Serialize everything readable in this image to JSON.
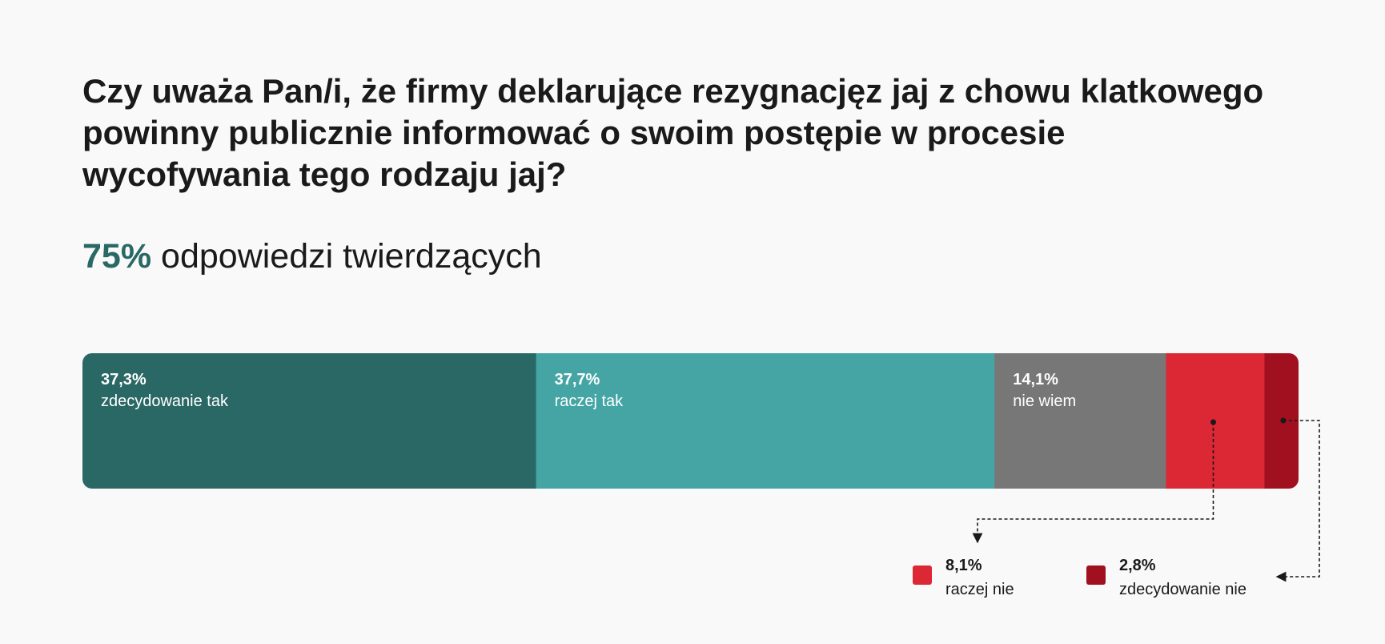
{
  "title_lines": [
    "Czy uważa Pan/i, że firmy deklarujące rezygnacjęz jaj z chowu klatkowego",
    "powinny publicznie informować o swoim postępie w procesie",
    "wycofywania tego rodzaju jaj?"
  ],
  "summary": {
    "percent": "75%",
    "text": "odpowiedzi twierdzących"
  },
  "colors": {
    "summary_accent": "#2a6866",
    "label_on_bar": "#ffffff",
    "legend_text": "#1a1a1a",
    "leader_line": "#1a1a1a"
  },
  "chart_data": {
    "type": "bar",
    "orientation": "horizontal-stacked-100",
    "unit": "%",
    "series": [
      {
        "name": "zdecydowanie tak",
        "value": 37.3,
        "label": "37,3%",
        "color": "#2a6866",
        "label_position": "inside"
      },
      {
        "name": "raczej tak",
        "value": 37.7,
        "label": "37,7%",
        "color": "#45a5a5",
        "label_position": "inside"
      },
      {
        "name": "nie wiem",
        "value": 14.1,
        "label": "14,1%",
        "color": "#777777",
        "label_position": "inside"
      },
      {
        "name": "raczej nie",
        "value": 8.1,
        "label": "8,1%",
        "color": "#dc2735",
        "label_position": "legend"
      },
      {
        "name": "zdecydowanie nie",
        "value": 2.8,
        "label": "2,8%",
        "color": "#a1101e",
        "label_position": "legend"
      }
    ]
  }
}
